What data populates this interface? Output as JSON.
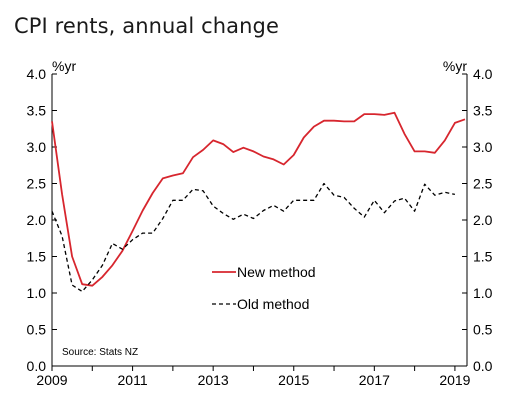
{
  "chart_data": {
    "type": "line",
    "title": "CPI rents, annual change",
    "y_unit_left": "%yr",
    "y_unit_right": "%yr",
    "ylim": [
      0.0,
      4.0
    ],
    "y_ticks": [
      "0.0",
      "0.5",
      "1.0",
      "1.5",
      "2.0",
      "2.5",
      "3.0",
      "3.5",
      "4.0"
    ],
    "xlim": [
      2009,
      2019.3
    ],
    "x_ticks": [
      "2009",
      "2011",
      "2013",
      "2015",
      "2017",
      "2019"
    ],
    "grid": false,
    "legend_position": "center-left",
    "source": "Source: Stats NZ",
    "series": [
      {
        "name": "New method",
        "color": "#d7262e",
        "style": "solid",
        "points": [
          [
            2009.0,
            3.35
          ],
          [
            2009.25,
            2.35
          ],
          [
            2009.5,
            1.5
          ],
          [
            2009.75,
            1.12
          ],
          [
            2010.0,
            1.1
          ],
          [
            2010.25,
            1.22
          ],
          [
            2010.5,
            1.38
          ],
          [
            2010.75,
            1.58
          ],
          [
            2011.0,
            1.85
          ],
          [
            2011.25,
            2.13
          ],
          [
            2011.5,
            2.37
          ],
          [
            2011.75,
            2.57
          ],
          [
            2012.0,
            2.61
          ],
          [
            2012.25,
            2.64
          ],
          [
            2012.5,
            2.86
          ],
          [
            2012.75,
            2.96
          ],
          [
            2013.0,
            3.09
          ],
          [
            2013.25,
            3.04
          ],
          [
            2013.5,
            2.93
          ],
          [
            2013.75,
            2.99
          ],
          [
            2014.0,
            2.94
          ],
          [
            2014.25,
            2.87
          ],
          [
            2014.5,
            2.83
          ],
          [
            2014.75,
            2.76
          ],
          [
            2015.0,
            2.89
          ],
          [
            2015.25,
            3.13
          ],
          [
            2015.5,
            3.28
          ],
          [
            2015.75,
            3.36
          ],
          [
            2016.0,
            3.36
          ],
          [
            2016.25,
            3.35
          ],
          [
            2016.5,
            3.35
          ],
          [
            2016.75,
            3.45
          ],
          [
            2017.0,
            3.45
          ],
          [
            2017.25,
            3.44
          ],
          [
            2017.5,
            3.47
          ],
          [
            2017.75,
            3.18
          ],
          [
            2018.0,
            2.94
          ],
          [
            2018.25,
            2.94
          ],
          [
            2018.5,
            2.92
          ],
          [
            2018.75,
            3.09
          ],
          [
            2019.0,
            3.33
          ],
          [
            2019.25,
            3.38
          ]
        ]
      },
      {
        "name": "Old method",
        "color": "#000000",
        "style": "dashed",
        "points": [
          [
            2009.0,
            2.12
          ],
          [
            2009.25,
            1.78
          ],
          [
            2009.5,
            1.11
          ],
          [
            2009.75,
            1.02
          ],
          [
            2010.0,
            1.18
          ],
          [
            2010.25,
            1.38
          ],
          [
            2010.5,
            1.68
          ],
          [
            2010.75,
            1.6
          ],
          [
            2011.0,
            1.73
          ],
          [
            2011.25,
            1.82
          ],
          [
            2011.5,
            1.82
          ],
          [
            2011.75,
            2.02
          ],
          [
            2012.0,
            2.27
          ],
          [
            2012.25,
            2.27
          ],
          [
            2012.5,
            2.42
          ],
          [
            2012.75,
            2.4
          ],
          [
            2013.0,
            2.19
          ],
          [
            2013.25,
            2.09
          ],
          [
            2013.5,
            2.01
          ],
          [
            2013.75,
            2.08
          ],
          [
            2014.0,
            2.02
          ],
          [
            2014.25,
            2.13
          ],
          [
            2014.5,
            2.2
          ],
          [
            2014.75,
            2.12
          ],
          [
            2015.0,
            2.27
          ],
          [
            2015.25,
            2.27
          ],
          [
            2015.5,
            2.27
          ],
          [
            2015.75,
            2.5
          ],
          [
            2016.0,
            2.34
          ],
          [
            2016.25,
            2.31
          ],
          [
            2016.5,
            2.16
          ],
          [
            2016.75,
            2.04
          ],
          [
            2017.0,
            2.27
          ],
          [
            2017.25,
            2.1
          ],
          [
            2017.5,
            2.26
          ],
          [
            2017.75,
            2.3
          ],
          [
            2018.0,
            2.12
          ],
          [
            2018.25,
            2.49
          ],
          [
            2018.5,
            2.34
          ],
          [
            2018.75,
            2.38
          ],
          [
            2019.0,
            2.35
          ]
        ]
      }
    ]
  }
}
